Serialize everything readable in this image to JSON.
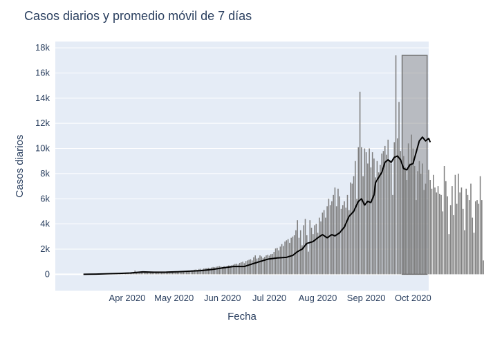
{
  "chart_data": {
    "type": "bar",
    "title": "Casos diarios y promedio móvil de 7 días",
    "xlabel": "Fecha",
    "ylabel": "Casos diarios",
    "ylim": [
      -1300,
      18500
    ],
    "yticks": [
      0,
      2000,
      4000,
      6000,
      8000,
      10000,
      12000,
      14000,
      16000,
      18000
    ],
    "ytick_labels": [
      "0",
      "2k",
      "4k",
      "6k",
      "8k",
      "10k",
      "12k",
      "14k",
      "16k",
      "18k"
    ],
    "x_start_date": "2020-03-04",
    "x_end_date": "2020-09-30",
    "x_range_days": [
      -18,
      221
    ],
    "xticks_days": [
      28,
      58,
      89,
      119,
      150,
      181,
      211
    ],
    "xtick_labels": [
      "Apr 2020",
      "May 2020",
      "Jun 2020",
      "Jul 2020",
      "Aug 2020",
      "Sep 2020",
      "Oct 2020"
    ],
    "series": [
      {
        "name": "Casos diarios",
        "type": "bar",
        "color": "#7f7f7f",
        "values": [
          0,
          5,
          0,
          8,
          3,
          12,
          10,
          18,
          20,
          15,
          28,
          32,
          26,
          36,
          42,
          40,
          48,
          55,
          52,
          62,
          70,
          68,
          78,
          85,
          70,
          82,
          96,
          88,
          105,
          112,
          100,
          118,
          130,
          300,
          120,
          150,
          170,
          155,
          182,
          190,
          176,
          195,
          205,
          188,
          168,
          160,
          180,
          140,
          162,
          150,
          170,
          160,
          175,
          185,
          190,
          175,
          205,
          198,
          215,
          212,
          240,
          230,
          260,
          240,
          245,
          270,
          280,
          300,
          275,
          320,
          320,
          360,
          380,
          340,
          420,
          430,
          380,
          455,
          480,
          500,
          520,
          480,
          540,
          580,
          560,
          600,
          620,
          650,
          620,
          580,
          640,
          600,
          650,
          700,
          680,
          720,
          760,
          820,
          840,
          780,
          900,
          950,
          1000,
          880,
          1050,
          1100,
          1150,
          1200,
          1100,
          1350,
          1500,
          1250,
          1300,
          1500,
          1420,
          1300,
          1380,
          1500,
          1550,
          1480,
          1600,
          1620,
          1780,
          2050,
          2100,
          1900,
          2200,
          2400,
          2250,
          2600,
          2700,
          2800,
          2500,
          2900,
          3000,
          3100,
          3500,
          4300,
          2900,
          3500,
          2300,
          3900,
          4400,
          3100,
          1800,
          4300,
          3700,
          3200,
          3900,
          4000,
          3300,
          4500,
          4200,
          4900,
          5100,
          4500,
          5400,
          6000,
          5500,
          5800,
          6300,
          6900,
          5400,
          6800,
          6200,
          5200,
          5500,
          5800,
          5300,
          6300,
          5100,
          7300,
          7200,
          7800,
          9000,
          6000,
          10100,
          14500,
          10100,
          7800,
          10000,
          9700,
          8800,
          10000,
          8500,
          9700,
          9200,
          7700,
          9000,
          8100,
          8700,
          9600,
          9800,
          10200,
          9500,
          10700,
          9100,
          8800,
          6300,
          10500,
          17400,
          10800,
          13700,
          9800,
          8800,
          9400,
          8500,
          7500,
          10400,
          8800,
          11100,
          10000,
          8600,
          5900,
          8200,
          9000,
          8000,
          8800,
          6700,
          7200,
          6000,
          8300,
          7500,
          6800,
          7900,
          6900,
          6500,
          7000,
          6400,
          6300,
          5000,
          8600,
          7400,
          6200,
          3200,
          5500,
          7000,
          4700,
          7900,
          5600,
          8000,
          6500,
          6900,
          5200,
          3500,
          6800,
          6300,
          5900,
          7200,
          4500,
          3300,
          5800,
          5900,
          5600,
          7800,
          5900,
          1100,
          1300
        ]
      },
      {
        "name": "Promedio móvil de 7 días",
        "type": "line",
        "color": "#000000",
        "points": [
          [
            0,
            0
          ],
          [
            8,
            15
          ],
          [
            15,
            40
          ],
          [
            23,
            70
          ],
          [
            30,
            100
          ],
          [
            38,
            190
          ],
          [
            45,
            165
          ],
          [
            53,
            170
          ],
          [
            60,
            200
          ],
          [
            68,
            245
          ],
          [
            75,
            290
          ],
          [
            83,
            390
          ],
          [
            90,
            520
          ],
          [
            96,
            620
          ],
          [
            103,
            620
          ],
          [
            110,
            900
          ],
          [
            118,
            1200
          ],
          [
            124,
            1300
          ],
          [
            130,
            1350
          ],
          [
            134,
            1500
          ],
          [
            137,
            1800
          ],
          [
            140,
            2000
          ],
          [
            143,
            2450
          ],
          [
            147,
            2600
          ],
          [
            150,
            2900
          ],
          [
            153,
            3150
          ],
          [
            156,
            2900
          ],
          [
            159,
            3150
          ],
          [
            161,
            3050
          ],
          [
            164,
            3300
          ],
          [
            167,
            3750
          ],
          [
            170,
            4600
          ],
          [
            173,
            5000
          ],
          [
            176,
            5800
          ],
          [
            178,
            6000
          ],
          [
            180,
            5500
          ],
          [
            182,
            5800
          ],
          [
            184,
            5700
          ],
          [
            186,
            6300
          ],
          [
            187,
            7300
          ],
          [
            189,
            7700
          ],
          [
            191,
            8100
          ],
          [
            193,
            8900
          ],
          [
            195,
            9100
          ],
          [
            197,
            8900
          ],
          [
            199,
            9300
          ],
          [
            201,
            9400
          ],
          [
            203,
            9100
          ],
          [
            205,
            8400
          ],
          [
            207,
            8300
          ],
          [
            209,
            8700
          ],
          [
            211,
            8800
          ],
          [
            213,
            9700
          ],
          [
            215,
            10600
          ],
          [
            217,
            10900
          ],
          [
            219,
            10600
          ],
          [
            221,
            10800
          ],
          [
            222,
            10500
          ]
        ]
      }
    ],
    "highlight": {
      "x_from_day": 204,
      "x_to_day": 220,
      "y_from": 0,
      "y_to": 17400,
      "fill": "rgba(128,128,128,0.45)",
      "stroke": "#707070"
    },
    "plot_bg": "#e5ecf6",
    "grid_color": "#ffffff",
    "zero_line_color": "#ffffff",
    "text_color": "#2a3f5f"
  }
}
